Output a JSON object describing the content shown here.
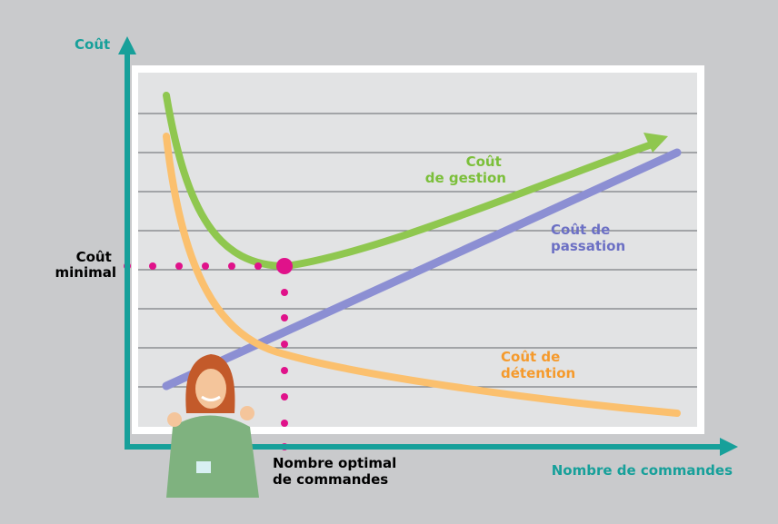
{
  "axes": {
    "y_label": "Coût",
    "x_label": "Nombre de commandes"
  },
  "annotations": {
    "minimal_cost": [
      "Coût",
      "minimal"
    ],
    "optimal_orders": [
      "Nombre optimal",
      "de commandes"
    ]
  },
  "curves": [
    {
      "label": [
        "Coût",
        "de gestion"
      ]
    },
    {
      "label": [
        "Coût de",
        "passation"
      ]
    },
    {
      "label": [
        "Coût de",
        "détention"
      ]
    }
  ]
}
